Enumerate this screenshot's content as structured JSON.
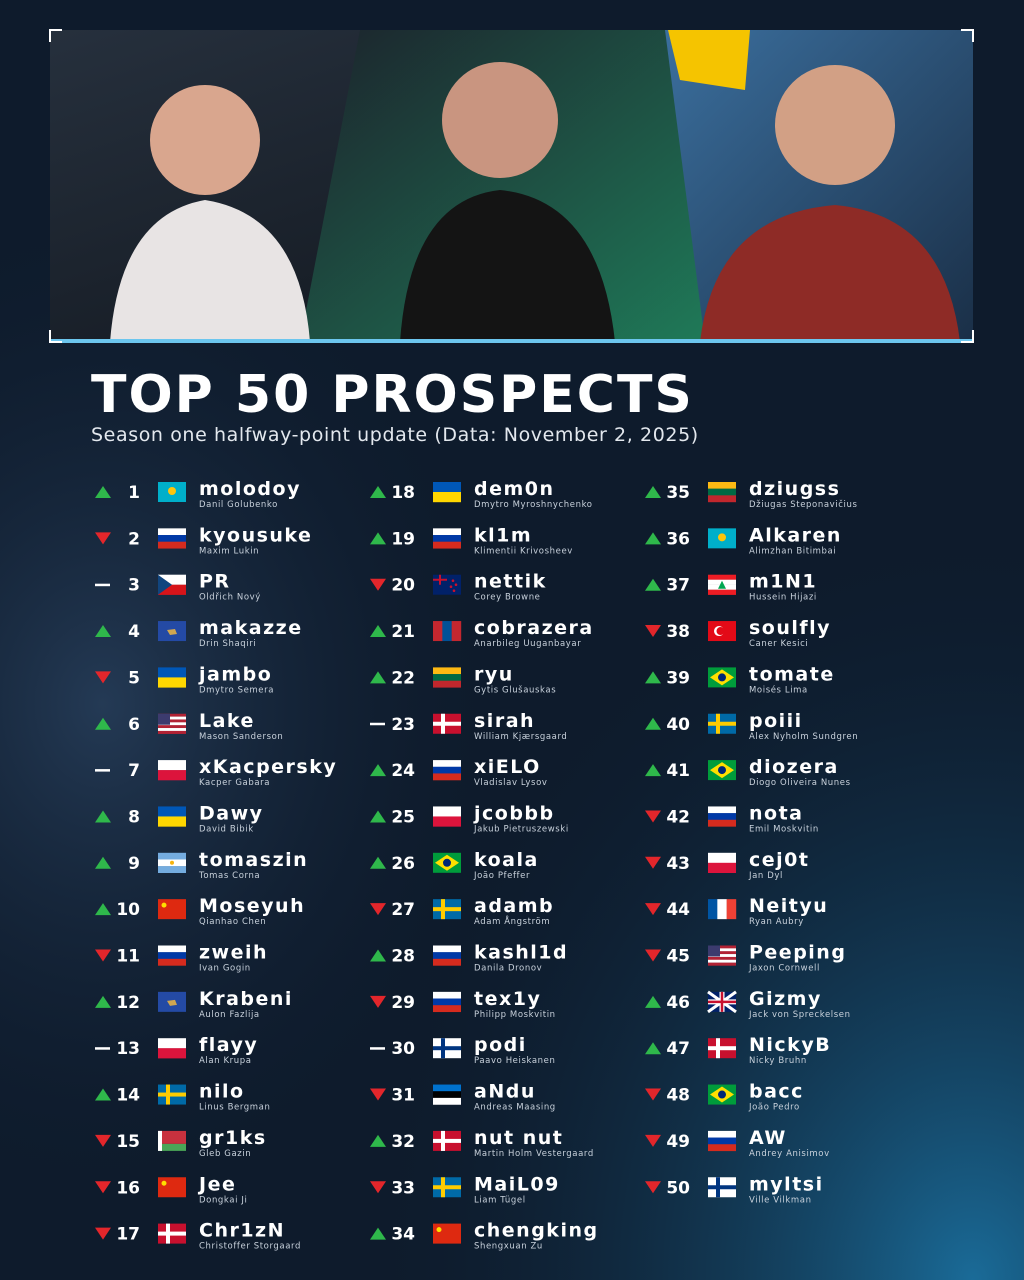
{
  "header": {
    "title": "TOP 50 PROSPECTS",
    "subtitle": "Season one halfway-point update (Data: November 2, 2025)"
  },
  "players": [
    {
      "rank": 1,
      "trend": "up",
      "nick": "molodoy",
      "name": "Danil Golubenko",
      "flag": "kz"
    },
    {
      "rank": 2,
      "trend": "down",
      "nick": "kyousuke",
      "name": "Maxim Lukin",
      "flag": "ru"
    },
    {
      "rank": 3,
      "trend": "same",
      "nick": "PR",
      "name": "Oldřich Nový",
      "flag": "cz"
    },
    {
      "rank": 4,
      "trend": "up",
      "nick": "makazze",
      "name": "Drin Shaqiri",
      "flag": "xk"
    },
    {
      "rank": 5,
      "trend": "down",
      "nick": "jambo",
      "name": "Dmytro Semera",
      "flag": "ua"
    },
    {
      "rank": 6,
      "trend": "up",
      "nick": "Lake",
      "name": "Mason Sanderson",
      "flag": "us"
    },
    {
      "rank": 7,
      "trend": "same",
      "nick": "xKacpersky",
      "name": "Kacper Gabara",
      "flag": "pl"
    },
    {
      "rank": 8,
      "trend": "up",
      "nick": "Dawy",
      "name": "David Bibik",
      "flag": "ua"
    },
    {
      "rank": 9,
      "trend": "up",
      "nick": "tomaszin",
      "name": "Tomas Corna",
      "flag": "ar"
    },
    {
      "rank": 10,
      "trend": "up",
      "nick": "Moseyuh",
      "name": "Qianhao Chen",
      "flag": "cn"
    },
    {
      "rank": 11,
      "trend": "down",
      "nick": "zweih",
      "name": "Ivan Gogin",
      "flag": "ru"
    },
    {
      "rank": 12,
      "trend": "up",
      "nick": "Krabeni",
      "name": "Aulon Fazlija",
      "flag": "xk"
    },
    {
      "rank": 13,
      "trend": "same",
      "nick": "flayy",
      "name": "Alan Krupa",
      "flag": "pl"
    },
    {
      "rank": 14,
      "trend": "up",
      "nick": "nilo",
      "name": "Linus Bergman",
      "flag": "se"
    },
    {
      "rank": 15,
      "trend": "down",
      "nick": "gr1ks",
      "name": "Gleb Gazin",
      "flag": "by"
    },
    {
      "rank": 16,
      "trend": "down",
      "nick": "Jee",
      "name": "Dongkai Ji",
      "flag": "cn"
    },
    {
      "rank": 17,
      "trend": "down",
      "nick": "Chr1zN",
      "name": "Christoffer Storgaard",
      "flag": "dk"
    },
    {
      "rank": 18,
      "trend": "up",
      "nick": "dem0n",
      "name": "Dmytro Myroshnychenko",
      "flag": "ua"
    },
    {
      "rank": 19,
      "trend": "up",
      "nick": "kl1m",
      "name": "Klimentii Krivosheev",
      "flag": "ru"
    },
    {
      "rank": 20,
      "trend": "down",
      "nick": "nettik",
      "name": "Corey Browne",
      "flag": "nz"
    },
    {
      "rank": 21,
      "trend": "up",
      "nick": "cobrazera",
      "name": "Anarbileg Uuganbayar",
      "flag": "mn"
    },
    {
      "rank": 22,
      "trend": "up",
      "nick": "ryu",
      "name": "Gytis Glušauskas",
      "flag": "lt"
    },
    {
      "rank": 23,
      "trend": "same",
      "nick": "sirah",
      "name": "William Kjærsgaard",
      "flag": "dk"
    },
    {
      "rank": 24,
      "trend": "up",
      "nick": "xiELO",
      "name": "Vladislav Lysov",
      "flag": "ru"
    },
    {
      "rank": 25,
      "trend": "up",
      "nick": "jcobbb",
      "name": "Jakub Pietruszewski",
      "flag": "pl"
    },
    {
      "rank": 26,
      "trend": "up",
      "nick": "koala",
      "name": "João Pfeffer",
      "flag": "br"
    },
    {
      "rank": 27,
      "trend": "down",
      "nick": "adamb",
      "name": "Adam Ångström",
      "flag": "se"
    },
    {
      "rank": 28,
      "trend": "up",
      "nick": "kashl1d",
      "name": "Danila Dronov",
      "flag": "ru"
    },
    {
      "rank": 29,
      "trend": "down",
      "nick": "tex1y",
      "name": "Philipp Moskvitin",
      "flag": "ru"
    },
    {
      "rank": 30,
      "trend": "same",
      "nick": "podi",
      "name": "Paavo Heiskanen",
      "flag": "fi"
    },
    {
      "rank": 31,
      "trend": "down",
      "nick": "aNdu",
      "name": "Andreas Maasing",
      "flag": "ee"
    },
    {
      "rank": 32,
      "trend": "up",
      "nick": "nut nut",
      "name": "Martin Holm Vestergaard",
      "flag": "dk"
    },
    {
      "rank": 33,
      "trend": "down",
      "nick": "MaiL09",
      "name": "Liam Tügel",
      "flag": "se"
    },
    {
      "rank": 34,
      "trend": "up",
      "nick": "chengking",
      "name": "Shengxuan Zu",
      "flag": "cn"
    },
    {
      "rank": 35,
      "trend": "up",
      "nick": "dziugss",
      "name": "Džiugas Steponavičius",
      "flag": "lt"
    },
    {
      "rank": 36,
      "trend": "up",
      "nick": "Alkaren",
      "name": "Alimzhan Bitimbai",
      "flag": "kz"
    },
    {
      "rank": 37,
      "trend": "up",
      "nick": "m1N1",
      "name": "Hussein Hijazi",
      "flag": "lb"
    },
    {
      "rank": 38,
      "trend": "down",
      "nick": "soulfly",
      "name": "Caner Kesici",
      "flag": "tr"
    },
    {
      "rank": 39,
      "trend": "up",
      "nick": "tomate",
      "name": "Moisés Lima",
      "flag": "br"
    },
    {
      "rank": 40,
      "trend": "up",
      "nick": "poiii",
      "name": "Alex Nyholm Sundgren",
      "flag": "se"
    },
    {
      "rank": 41,
      "trend": "up",
      "nick": "diozera",
      "name": "Diogo Oliveira Nunes",
      "flag": "br"
    },
    {
      "rank": 42,
      "trend": "down",
      "nick": "nota",
      "name": "Emil Moskvitin",
      "flag": "ru"
    },
    {
      "rank": 43,
      "trend": "down",
      "nick": "cej0t",
      "name": "Jan Dyl",
      "flag": "pl"
    },
    {
      "rank": 44,
      "trend": "down",
      "nick": "Neityu",
      "name": "Ryan Aubry",
      "flag": "fr"
    },
    {
      "rank": 45,
      "trend": "down",
      "nick": "Peeping",
      "name": "Jaxon Cornwell",
      "flag": "us"
    },
    {
      "rank": 46,
      "trend": "up",
      "nick": "Gizmy",
      "name": "Jack von Spreckelsen",
      "flag": "gb"
    },
    {
      "rank": 47,
      "trend": "up",
      "nick": "NickyB",
      "name": "Nicky Bruhn",
      "flag": "dk"
    },
    {
      "rank": 48,
      "trend": "down",
      "nick": "bacc",
      "name": "João Pedro",
      "flag": "br"
    },
    {
      "rank": 49,
      "trend": "down",
      "nick": "AW",
      "name": "Andrey Anisimov",
      "flag": "ru"
    },
    {
      "rank": 50,
      "trend": "down",
      "nick": "myltsi",
      "name": "Ville Vilkman",
      "flag": "fi"
    }
  ]
}
